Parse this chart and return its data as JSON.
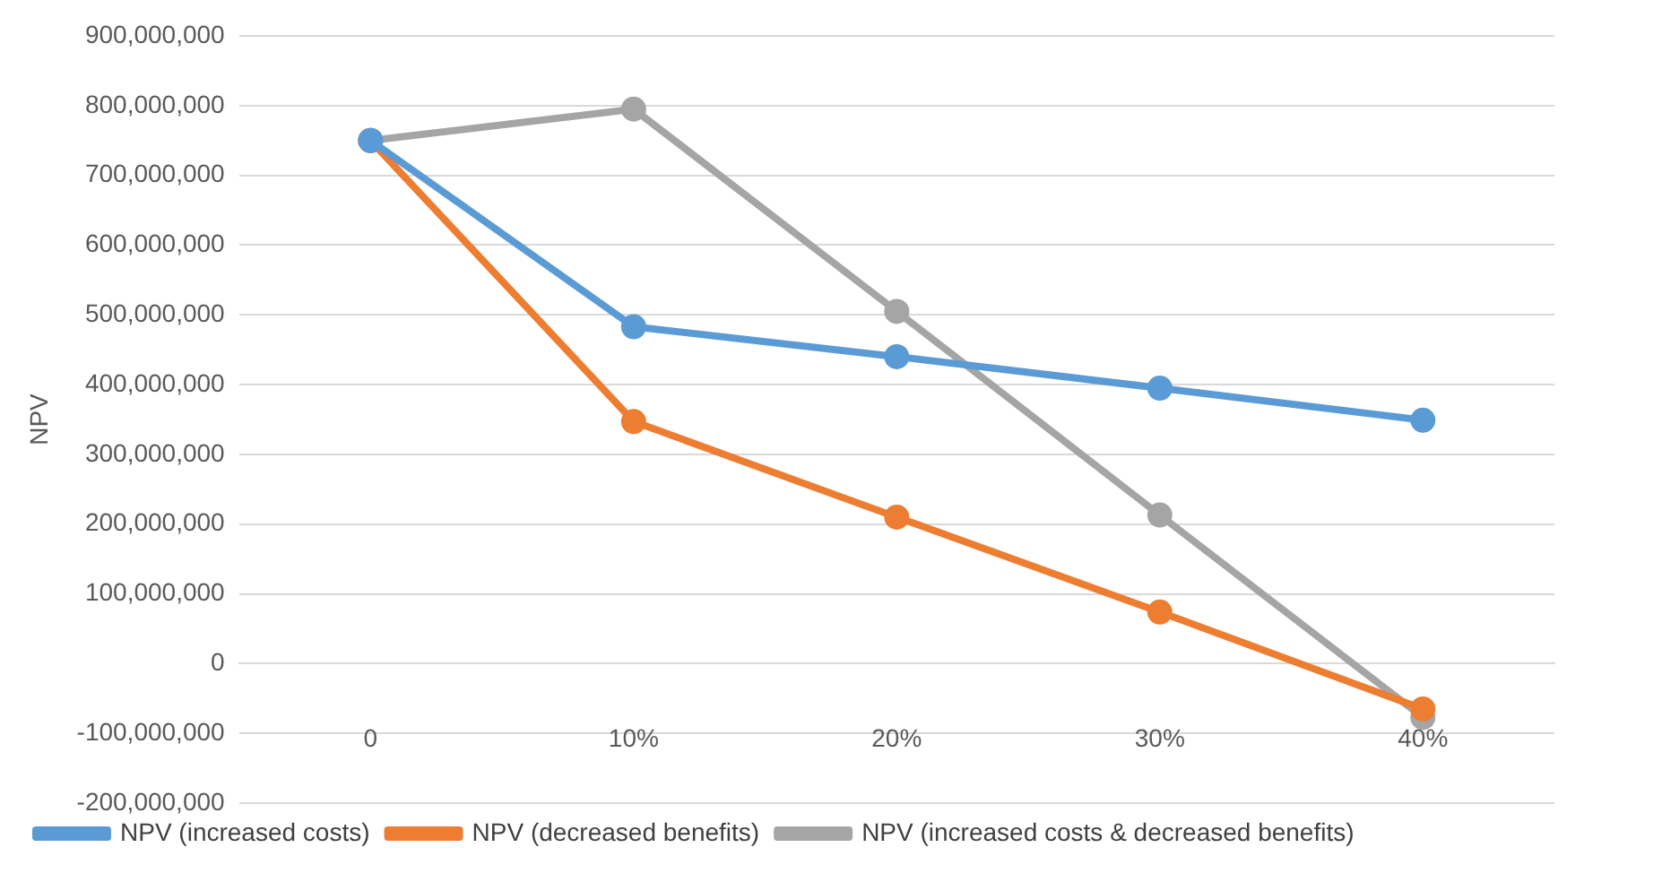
{
  "chart_data": {
    "type": "line",
    "ylabel": "NPV",
    "categories": [
      "0",
      "10%",
      "20%",
      "30%",
      "40%"
    ],
    "series": [
      {
        "name": "NPV (increased costs)",
        "color": "#5b9bd5",
        "values": [
          750000000,
          483000000,
          440000000,
          395000000,
          349000000
        ]
      },
      {
        "name": "NPV (decreased benefits)",
        "color": "#ed7d31",
        "values": [
          750000000,
          347000000,
          210000000,
          74000000,
          -65000000
        ]
      },
      {
        "name": "NPV (increased costs & decreased benefits)",
        "color": "#a5a5a5",
        "values": [
          750000000,
          795000000,
          505000000,
          213000000,
          -77000000
        ]
      }
    ],
    "ylim": [
      -200000000,
      900000000
    ],
    "yticks": [
      {
        "value": -200000000,
        "label": "-200,000,000"
      },
      {
        "value": -100000000,
        "label": "-100,000,000"
      },
      {
        "value": 0,
        "label": "0"
      },
      {
        "value": 100000000,
        "label": "100,000,000"
      },
      {
        "value": 200000000,
        "label": "200,000,000"
      },
      {
        "value": 300000000,
        "label": "300,000,000"
      },
      {
        "value": 400000000,
        "label": "400,000,000"
      },
      {
        "value": 500000000,
        "label": "500,000,000"
      },
      {
        "value": 600000000,
        "label": "600,000,000"
      },
      {
        "value": 700000000,
        "label": "700,000,000"
      },
      {
        "value": 800000000,
        "label": "800,000,000"
      },
      {
        "value": 900000000,
        "label": "900,000,000"
      }
    ],
    "grid": "y",
    "legend": "bottom",
    "marker": "circle",
    "line_style": "solid"
  }
}
